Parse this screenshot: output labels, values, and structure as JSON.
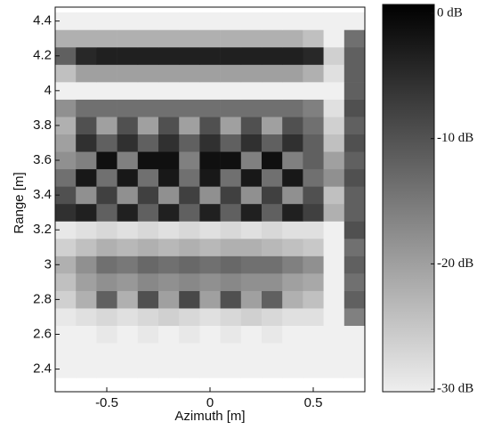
{
  "chart_data": {
    "type": "heatmap",
    "x_label": "Azimuth [m]",
    "y_label": "Range [m]",
    "x": [
      -0.7,
      -0.6,
      -0.5,
      -0.4,
      -0.3,
      -0.2,
      -0.1,
      0,
      0.1,
      0.2,
      0.3,
      0.4,
      0.5,
      0.6,
      0.7
    ],
    "y": [
      2.4,
      2.5,
      2.6,
      2.7,
      2.8,
      2.9,
      3,
      3.1,
      3.2,
      3.3,
      3.4,
      3.5,
      3.6,
      3.7,
      3.8,
      3.9,
      4,
      4.1,
      4.2,
      4.3,
      4.4
    ],
    "values": [
      [
        -30,
        -30,
        -30,
        -30,
        -30,
        -30,
        -30,
        -30,
        -30,
        -30,
        -30,
        -30,
        -30,
        -30,
        -30
      ],
      [
        -30,
        -30,
        -30,
        -30,
        -30,
        -30,
        -30,
        -30,
        -30,
        -30,
        -30,
        -30,
        -30,
        -30,
        -30
      ],
      [
        -30,
        -30,
        -29,
        -30,
        -29,
        -30,
        -29,
        -30,
        -29,
        -30,
        -29,
        -30,
        -30,
        -30,
        -30
      ],
      [
        -29,
        -28,
        -27,
        -28,
        -27,
        -26,
        -27,
        -28,
        -27,
        -26,
        -27,
        -28,
        -28,
        -30,
        -16
      ],
      [
        -26,
        -22,
        -12,
        -22,
        -10,
        -20,
        -9,
        -20,
        -10,
        -20,
        -12,
        -22,
        -24,
        -30,
        -12
      ],
      [
        -24,
        -20,
        -18,
        -19,
        -17,
        -18,
        -17,
        -18,
        -17,
        -18,
        -18,
        -20,
        -21,
        -30,
        -14
      ],
      [
        -22,
        -18,
        -14,
        -15,
        -13,
        -14,
        -13,
        -14,
        -13,
        -14,
        -14,
        -16,
        -18,
        -30,
        -12
      ],
      [
        -26,
        -24,
        -22,
        -23,
        -22,
        -23,
        -22,
        -23,
        -22,
        -22,
        -23,
        -24,
        -25,
        -30,
        -14
      ],
      [
        -29,
        -28,
        -27,
        -28,
        -27,
        -28,
        -27,
        -28,
        -27,
        -28,
        -27,
        -28,
        -28,
        -30,
        -10
      ],
      [
        -6,
        -4,
        -12,
        -4,
        -12,
        -4,
        -12,
        -4,
        -12,
        -4,
        -12,
        -4,
        -8,
        -22,
        -12
      ],
      [
        -10,
        -18,
        -8,
        -18,
        -8,
        -18,
        -8,
        -18,
        -8,
        -18,
        -8,
        -18,
        -10,
        -24,
        -12
      ],
      [
        -14,
        -3,
        -14,
        -3,
        -14,
        -3,
        -14,
        -3,
        -14,
        -3,
        -14,
        -3,
        -14,
        -18,
        -10
      ],
      [
        -18,
        -16,
        -2,
        -16,
        -2,
        -2,
        -16,
        -2,
        -2,
        -16,
        -2,
        -16,
        -12,
        -20,
        -12
      ],
      [
        -20,
        -6,
        -12,
        -6,
        -12,
        -6,
        -12,
        -6,
        -12,
        -6,
        -12,
        -6,
        -12,
        -24,
        -10
      ],
      [
        -22,
        -10,
        -20,
        -10,
        -20,
        -10,
        -20,
        -10,
        -20,
        -10,
        -20,
        -10,
        -14,
        -26,
        -12
      ],
      [
        -18,
        -14,
        -14,
        -14,
        -14,
        -14,
        -14,
        -14,
        -14,
        -14,
        -14,
        -14,
        -16,
        -28,
        -10
      ],
      [
        -30,
        -30,
        -30,
        -30,
        -30,
        -30,
        -30,
        -30,
        -30,
        -30,
        -30,
        -30,
        -30,
        -30,
        -12
      ],
      [
        -24,
        -20,
        -20,
        -20,
        -20,
        -20,
        -20,
        -20,
        -20,
        -20,
        -20,
        -20,
        -22,
        -28,
        -12
      ],
      [
        -12,
        -5,
        -4,
        -4,
        -4,
        -4,
        -4,
        -4,
        -4,
        -4,
        -4,
        -4,
        -5,
        -26,
        -12
      ],
      [
        -22,
        -22,
        -22,
        -22,
        -22,
        -22,
        -22,
        -22,
        -22,
        -22,
        -22,
        -22,
        -24,
        -30,
        -14
      ],
      [
        -30,
        -30,
        -30,
        -30,
        -30,
        -30,
        -30,
        -30,
        -30,
        -30,
        -30,
        -30,
        -30,
        -30,
        -30
      ]
    ],
    "xlim": [
      -0.75,
      0.75
    ],
    "ylim": [
      2.27,
      4.48
    ],
    "xticks": [
      -0.5,
      0,
      0.5
    ],
    "yticks": [
      2.4,
      2.6,
      2.8,
      3,
      3.2,
      3.4,
      3.6,
      3.8,
      4,
      4.2,
      4.4
    ],
    "colorbar": {
      "lim": [
        -30.2,
        0.7
      ],
      "ticks": [
        {
          "value": 0,
          "label": "0 dB"
        },
        {
          "value": -10,
          "label": "-10 dB"
        },
        {
          "value": -20,
          "label": "-20 dB"
        },
        {
          "value": -30,
          "label": "-30 dB"
        }
      ]
    }
  }
}
